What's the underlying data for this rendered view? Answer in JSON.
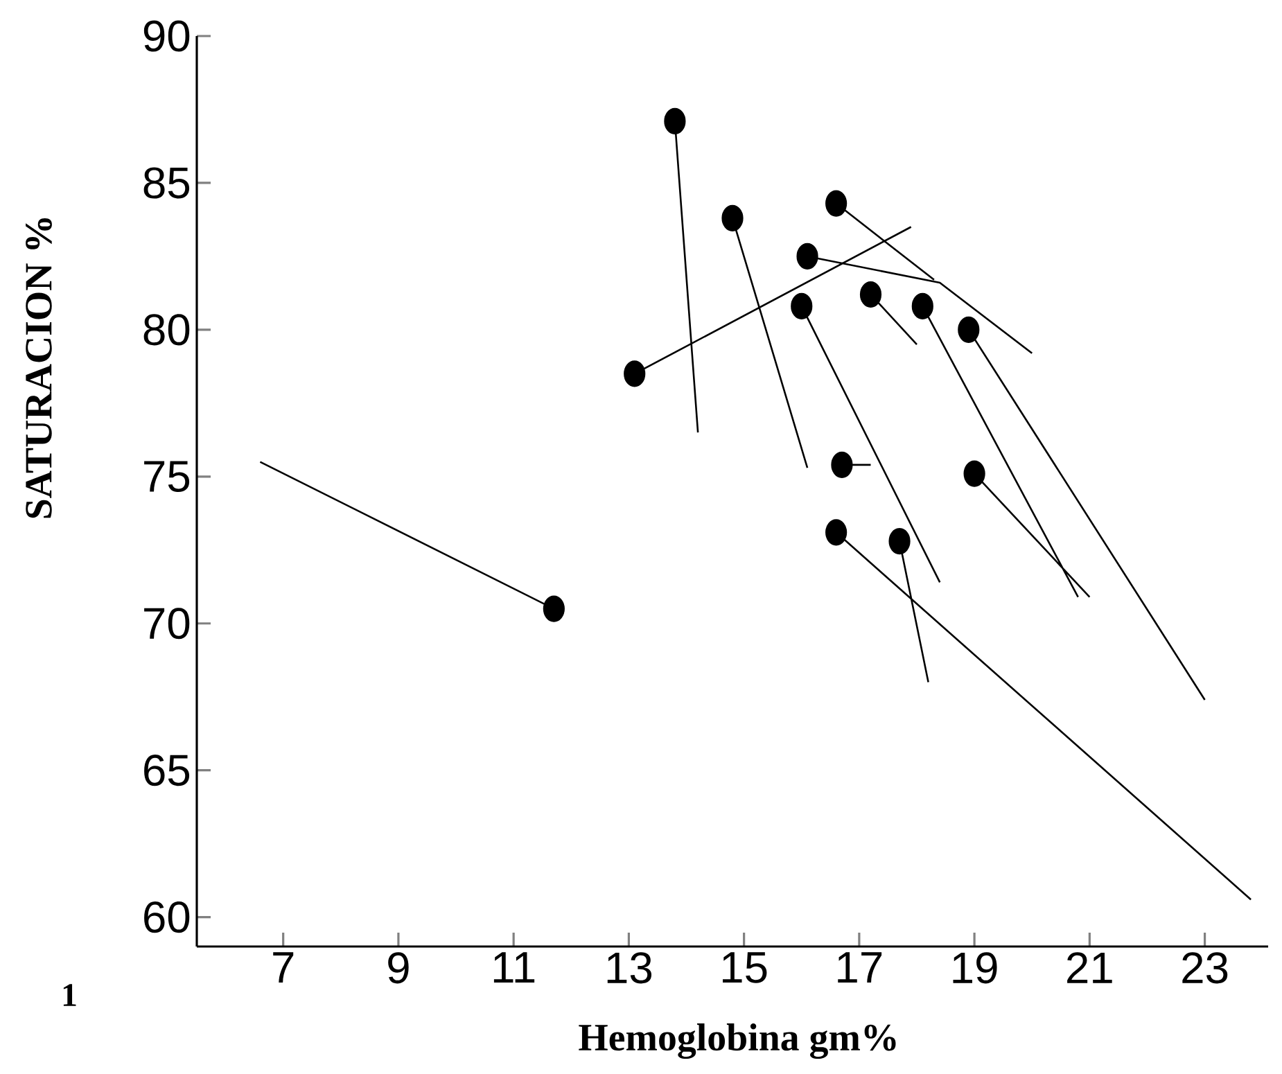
{
  "chart_data": {
    "type": "scatter",
    "xlabel": "Hemoglobina gm%",
    "ylabel": "SATURACION %",
    "annotations": [
      "1"
    ],
    "xlim": [
      5.5,
      24.1
    ],
    "ylim": [
      59,
      90
    ],
    "xticks": [
      7,
      9,
      11,
      13,
      15,
      17,
      19,
      21,
      23
    ],
    "yticks": [
      60,
      65,
      70,
      75,
      80,
      85,
      90
    ],
    "grid": false,
    "series": [
      {
        "color": "#000000",
        "marker": "circle",
        "x": [
          11.7,
          13.1,
          13.8,
          14.8,
          16.1,
          16.6,
          16.0,
          17.2,
          18.1,
          18.9,
          16.7,
          19.0,
          16.6,
          17.7
        ],
        "values": [
          70.5,
          78.5,
          87.1,
          83.8,
          82.5,
          84.3,
          80.8,
          81.2,
          80.8,
          80.0,
          75.4,
          75.1,
          73.1,
          72.8
        ]
      },
      {
        "type": "line",
        "color": "#000000",
        "line_style": "solid",
        "x": [
          11.7,
          6.6,
          null,
          13.1,
          17.9,
          null,
          13.8,
          14.2,
          null,
          14.8,
          16.1,
          null,
          16.1,
          18.4,
          20.0,
          null,
          16.6,
          18.3,
          null,
          16.0,
          18.4,
          null,
          17.2,
          18.0,
          null,
          18.1,
          20.8,
          null,
          18.9,
          23.0,
          null,
          16.7,
          17.2,
          null,
          19.0,
          21.0,
          null,
          16.6,
          23.8,
          null,
          17.7,
          18.2
        ],
        "values": [
          70.5,
          75.5,
          null,
          78.5,
          83.5,
          null,
          87.1,
          76.5,
          null,
          83.8,
          75.3,
          null,
          82.5,
          81.6,
          79.2,
          null,
          84.3,
          81.7,
          null,
          80.8,
          71.4,
          null,
          81.2,
          79.5,
          null,
          80.8,
          70.9,
          null,
          80.0,
          67.4,
          null,
          75.4,
          75.4,
          null,
          75.1,
          70.9,
          null,
          73.1,
          60.6,
          null,
          72.8,
          68.0
        ]
      }
    ]
  }
}
